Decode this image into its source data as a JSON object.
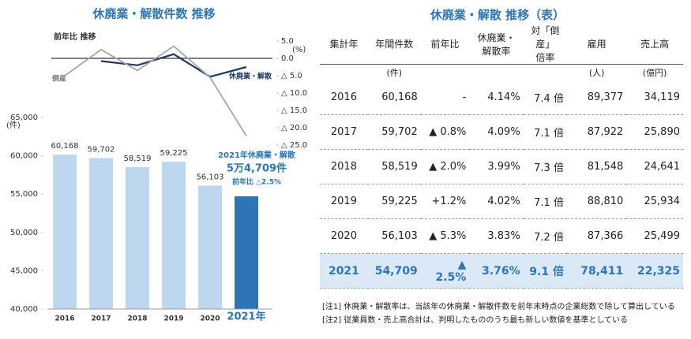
{
  "chart_data": [
    {
      "type": "line",
      "title": "休廃業・解散件数 推移",
      "subtitle": "前年比 推移",
      "ylabel": "(%)",
      "ylim": [
        -25,
        5
      ],
      "yticks": [
        {
          "value": 5,
          "label": "5.0"
        },
        {
          "value": 0,
          "label": "0.0"
        },
        {
          "value": -5,
          "label": "△ 5.0"
        },
        {
          "value": -10,
          "label": "△ 10.0"
        },
        {
          "value": -15,
          "label": "△ 15.0"
        },
        {
          "value": -20,
          "label": "△ 20.0"
        },
        {
          "value": -25,
          "label": "△ 25.0"
        }
      ],
      "series": [
        {
          "name": "休廃業・解散",
          "color": "#1f3864",
          "values": [
            null,
            -0.8,
            -2.0,
            1.2,
            -5.3,
            -2.5
          ]
        },
        {
          "name": "倒産",
          "color": "#a6a6a6",
          "values": [
            -5.0,
            2.5,
            -3.5,
            3.5,
            -5.5,
            -22.4
          ]
        }
      ]
    },
    {
      "type": "bar",
      "ylabel": "(件)",
      "categories": [
        "2016",
        "2017",
        "2018",
        "2019",
        "2020",
        "2021年"
      ],
      "values": [
        60168,
        59702,
        58519,
        59225,
        56103,
        54709
      ],
      "value_labels": [
        "60,168",
        "59,702",
        "58,519",
        "59,225",
        "56,103",
        null
      ],
      "colors": [
        "#bdd7ee",
        "#bdd7ee",
        "#bdd7ee",
        "#bdd7ee",
        "#bdd7ee",
        "#2e75b6"
      ],
      "ylim": [
        40000,
        65000
      ],
      "yticks": [
        {
          "value": 40000,
          "label": "40,000"
        },
        {
          "value": 45000,
          "label": "45,000"
        },
        {
          "value": 50000,
          "label": "50,000"
        },
        {
          "value": 55000,
          "label": "55,000"
        },
        {
          "value": 60000,
          "label": "60,000"
        },
        {
          "value": 65000,
          "label": "65,000"
        }
      ],
      "annotation": [
        "2021年休廃業・解散",
        "5万4,709件",
        "前年比 △2.5%"
      ]
    }
  ],
  "table": {
    "title": "休廃業・解散 推移（表）",
    "headers": [
      {
        "label": "集計年"
      },
      {
        "label": "年間件数",
        "unit": "(件)"
      },
      {
        "label": "前年比"
      },
      {
        "label": "休廃業・\n解散率"
      },
      {
        "label": "対「倒産」\n倍率"
      },
      {
        "label": "雇用",
        "unit": "(人)"
      },
      {
        "label": "売上高",
        "unit": "(億円)"
      }
    ],
    "rows": [
      [
        "2016",
        "60,168",
        "-",
        "4.14%",
        "7.4 倍",
        "89,377",
        "34,119"
      ],
      [
        "2017",
        "59,702",
        "▲ 0.8%",
        "4.09%",
        "7.1 倍",
        "87,922",
        "25,890"
      ],
      [
        "2018",
        "58,519",
        "▲ 2.0%",
        "3.99%",
        "7.3 倍",
        "81,548",
        "24,641"
      ],
      [
        "2019",
        "59,225",
        "+1.2%",
        "4.02%",
        "7.1 倍",
        "88,810",
        "25,934"
      ],
      [
        "2020",
        "56,103",
        "▲ 5.3%",
        "3.83%",
        "7.2 倍",
        "87,366",
        "25,499"
      ],
      [
        "2021",
        "54,709",
        "▲ 2.5%",
        "3.76%",
        "9.1 倍",
        "78,411",
        "22,325"
      ]
    ],
    "notes": [
      "[注1] 休廃業・解散率は、当該年の休廃業・解散件数を前年末時点の企業総数で除して算出している",
      "[注2] 従業員数・売上高合計は、判明したもののうち最も新しい数値を基準としている"
    ]
  }
}
